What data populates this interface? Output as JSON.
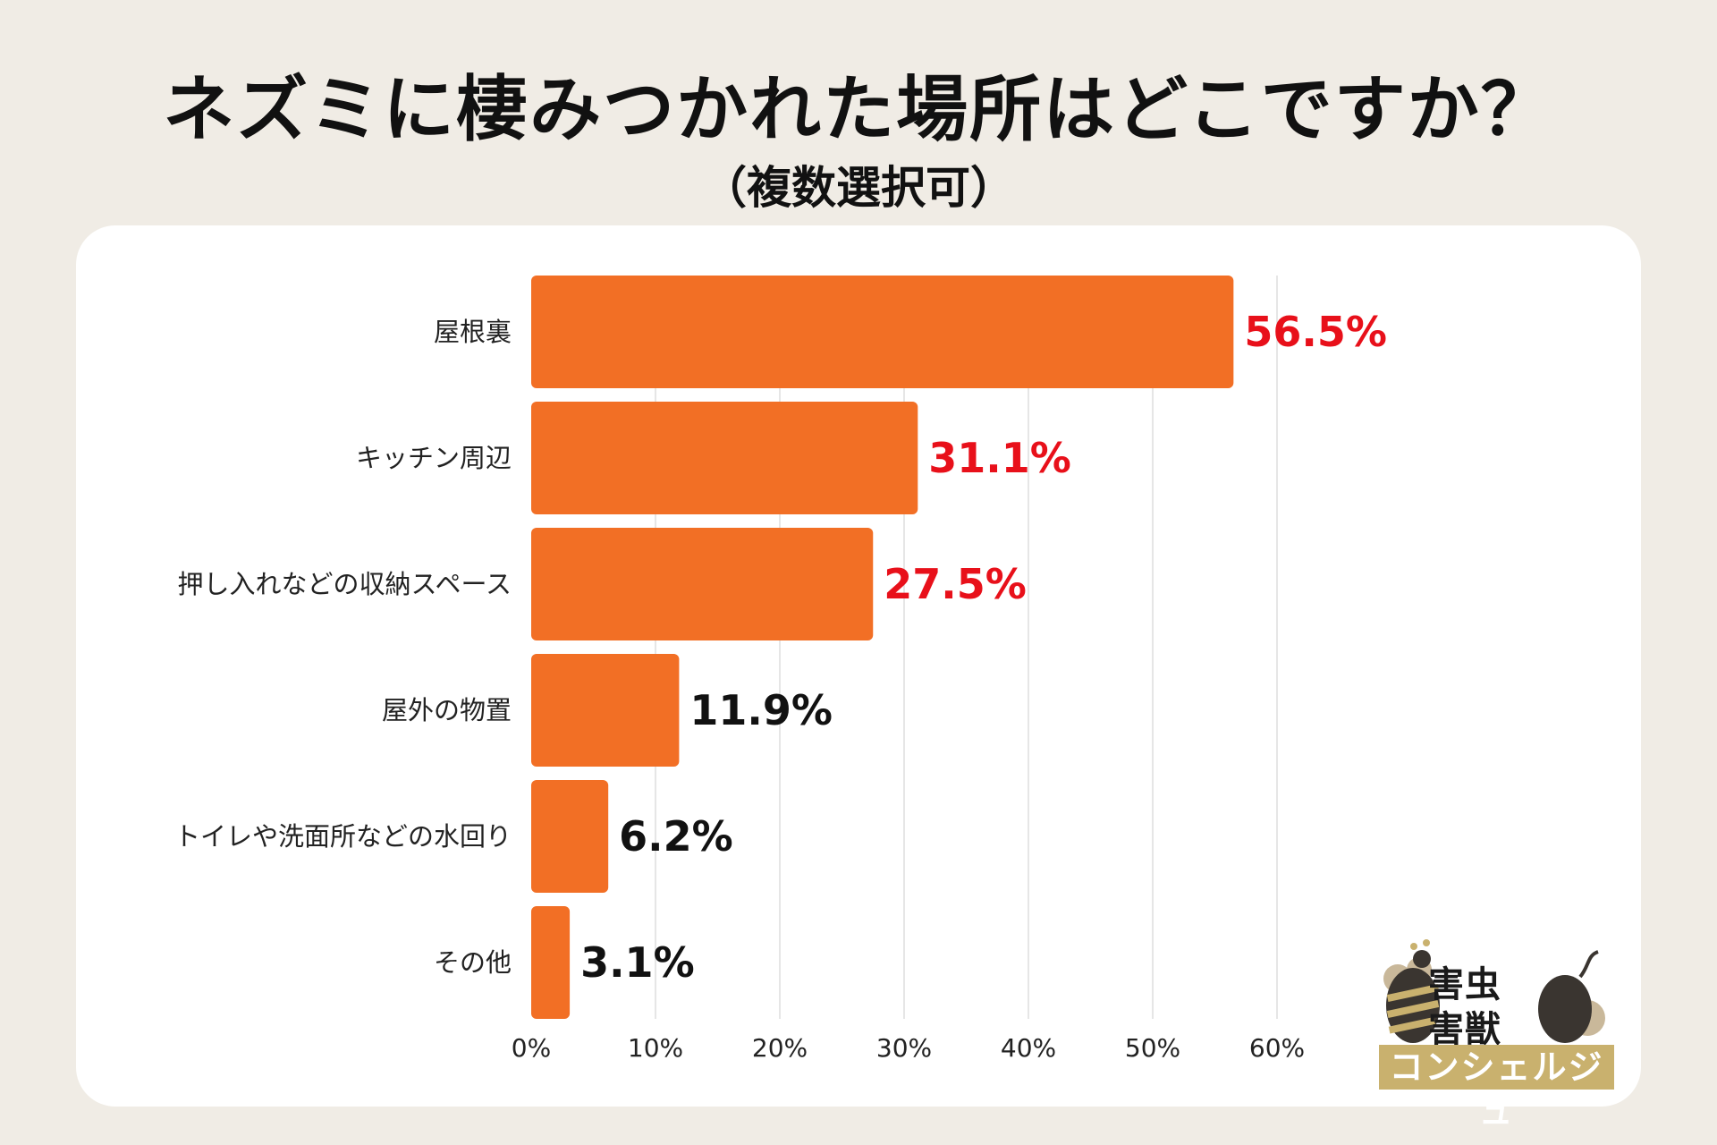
{
  "chart_data": {
    "type": "bar",
    "orientation": "horizontal",
    "title": "ネズミに棲みつかれた場所はどこですか？",
    "subtitle": "（複数選択可）",
    "categories": [
      "屋根裏",
      "キッチン周辺",
      "押し入れなどの収納スペース",
      "屋外の物置",
      "トイレや洗面所などの水回り",
      "その他"
    ],
    "values": [
      56.5,
      31.1,
      27.5,
      11.9,
      6.2,
      3.1
    ],
    "value_labels": [
      "56.5%",
      "31.1%",
      "27.5%",
      "11.9%",
      "6.2%",
      "3.1%"
    ],
    "highlight_count": 3,
    "xlim": [
      0,
      60
    ],
    "xticks": [
      0,
      10,
      20,
      30,
      40,
      50,
      60
    ],
    "xtick_labels": [
      "0%",
      "10%",
      "20%",
      "30%",
      "40%",
      "50%",
      "60%"
    ],
    "grid": true,
    "xlabel": "",
    "ylabel": ""
  },
  "colors": {
    "bar": "#f26f25",
    "highlight_label": "#e8101a",
    "normal_label": "#111111",
    "grid": "#dddddd"
  },
  "logo": {
    "line1": "害虫",
    "line2": "害獣",
    "band": "コンシェルジュ"
  }
}
